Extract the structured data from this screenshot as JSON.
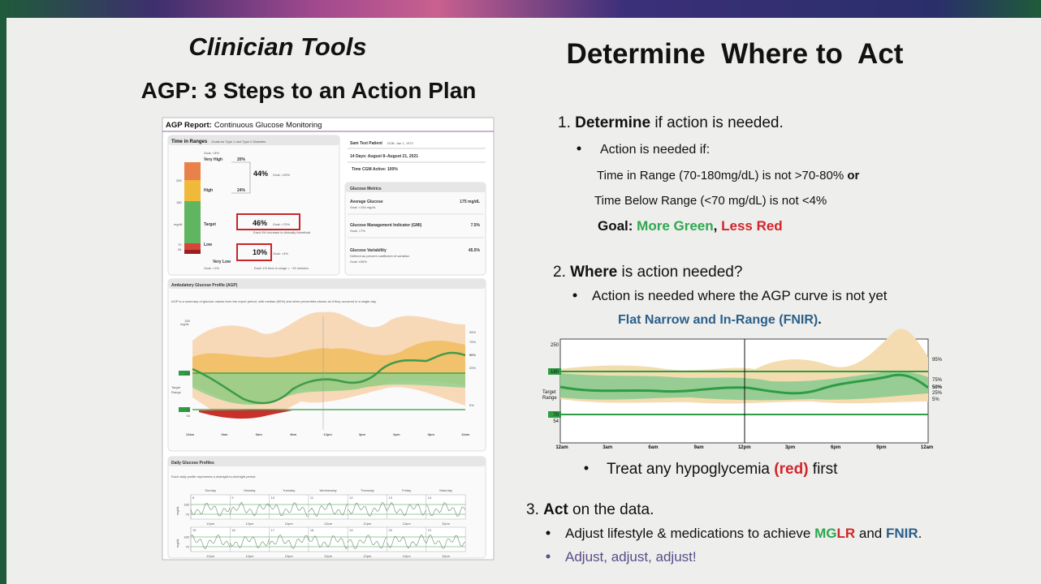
{
  "left": {
    "title": "Clinician Tools",
    "subtitle": "AGP: 3 Steps to an Action Plan",
    "report": {
      "title": "AGP Report:",
      "title_sub": "Continuous Glucose Monitoring",
      "tir_title": "Time in Ranges",
      "tir_note": "Goals for Type 1 and Type 2 Diabetes",
      "very_high_goal": "Goal: <5%",
      "very_high": "Very High",
      "very_high_pct": "20%",
      "combined_high": "44%",
      "combined_high_goal": "Goal: <25%",
      "high": "High",
      "high_pct": "24%",
      "target": "Target",
      "target_pct": "46%",
      "target_goal": "Goal: >70%",
      "target_note": "Each 5% increase is clinically beneficial",
      "low": "Low",
      "low_pct": "10%",
      "low_goal": "Goal: <4%",
      "very_low": "Very Low",
      "very_low_goal": "Goal: <1%",
      "time_note": "Each 1% time in range = ~15 minutes",
      "scale": [
        "250",
        "180",
        "mg/dL",
        "70",
        "54"
      ],
      "patient": "Sam Test Patient",
      "dob": "DOB: Jan 1, 1970",
      "days": "14 Days: August 8–August 21, 2021",
      "active": "Time CGM Active: 100%",
      "metrics_title": "Glucose Metrics",
      "metrics": [
        {
          "label": "Average Glucose",
          "value": "175 mg/dL",
          "goal": "Goal: <154 mg/dL"
        },
        {
          "label": "Glucose Management Indicator (GMI)",
          "value": "7.5%",
          "goal": "Goal: <7%"
        },
        {
          "label": "Glucose Variability",
          "value": "45.5%",
          "goal": "Defined as percent coefficient of variation",
          "goal2": "Goal: ≤36%"
        }
      ],
      "agp_title": "Ambulatory Glucose Profile (AGP)",
      "agp_note": "AGP is a summary of glucose values from the report period, with median (50%) and other percentiles shown as if they occurred in a single day.",
      "agp_y": [
        "250",
        "180",
        "70",
        "54"
      ],
      "agp_unit": "mg/dL",
      "agp_target": "Target",
      "agp_range": "Range",
      "agp_x": [
        "12am",
        "3am",
        "6am",
        "9am",
        "12pm",
        "3pm",
        "6pm",
        "9pm",
        "12am"
      ],
      "agp_pct": [
        "95%",
        "75%",
        "50%",
        "25%",
        "5%"
      ],
      "daily_title": "Daily Glucose Profiles",
      "daily_note": "Each daily profile represents a midnight-to-midnight period.",
      "weekdays": [
        "Sunday",
        "Monday",
        "Tuesday",
        "Wednesday",
        "Thursday",
        "Friday",
        "Saturday"
      ],
      "dates": [
        [
          "8",
          "9",
          "10",
          "11",
          "12",
          "13",
          "14"
        ],
        [
          "15",
          "16",
          "17",
          "18",
          "19",
          "20",
          "21"
        ]
      ],
      "daily_y": [
        "180",
        "70"
      ],
      "daily_unit": "mg/dL",
      "noon": "12pm"
    }
  },
  "right": {
    "title": "Determine  Where to  Act",
    "step1": {
      "num": "1. ",
      "bold": "Determine",
      "rest": " if action is needed."
    },
    "step1_bullet": "Action is needed if:",
    "cond1": "Time in Range (70-180mg/dL) is not >70-80% ",
    "cond1_bold": "or",
    "cond2": "Time Below Range (<70 mg/dL) is not <4%",
    "goal": {
      "label": "Goal: ",
      "green": "More Green",
      "sep": ", ",
      "red": "Less Red"
    },
    "step2": {
      "num": "2. ",
      "bold": "Where",
      "rest": " is action needed?"
    },
    "step2_bullet": "Action is needed where the AGP curve is not yet",
    "fnir": "Flat Narrow and In-Range (FNIR)",
    "fnir_end": ".",
    "chart": {
      "y": [
        "250",
        "180",
        "70",
        "54"
      ],
      "target": "Target",
      "range": "Range",
      "x": [
        "12am",
        "3am",
        "6am",
        "9am",
        "12pm",
        "3pm",
        "6pm",
        "9pm",
        "12am"
      ],
      "pct": [
        "95%",
        "75%",
        "50%",
        "25%",
        "5%"
      ]
    },
    "treat": {
      "pre": "Treat any hypoglycemia ",
      "red": "(red)",
      "post": " first"
    },
    "step3": {
      "num": "3. ",
      "bold": "Act",
      "rest": " on the data."
    },
    "act1": {
      "pre": "Adjust lifestyle & medications to achieve ",
      "mg": "MG",
      "lr": "LR",
      "mid": " and ",
      "fnir": "FNIR",
      "end": "."
    },
    "act2": "Adjust, adjust, adjust!"
  }
}
